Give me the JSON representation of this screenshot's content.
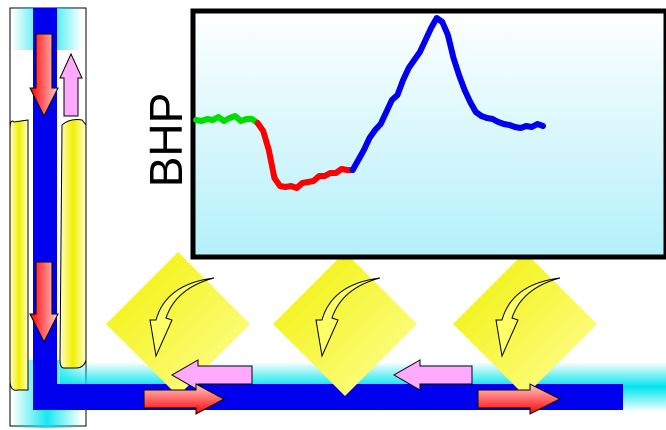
{
  "diagram": {
    "y_axis_label": "BHP",
    "series": [
      {
        "color": "#00dd00",
        "values": [
          120,
          121,
          119,
          120,
          117,
          121,
          118,
          116,
          121,
          119,
          119,
          123
        ]
      },
      {
        "color": "#ff0000",
        "values": [
          123,
          131,
          150,
          178,
          186,
          187,
          186,
          188,
          183,
          182,
          181,
          176,
          176,
          173,
          173,
          169,
          170,
          170
        ]
      },
      {
        "color": "#0000ee",
        "values": [
          170,
          160,
          150,
          138,
          130,
          124,
          112,
          100,
          95,
          80,
          68,
          60,
          52,
          40,
          28,
          18,
          22,
          35,
          58,
          75,
          90,
          102,
          112,
          116,
          118,
          119,
          122,
          124,
          125,
          127,
          128,
          126,
          127,
          124,
          126
        ]
      }
    ],
    "colors": {
      "pipe": "#0000ee",
      "pipe_glow": "#00e5ee",
      "flow_arrow": "#ff0000",
      "return_arrow": "#ffaaff",
      "influx_diamond": "#f0f000",
      "plot_border": "#000000"
    }
  }
}
